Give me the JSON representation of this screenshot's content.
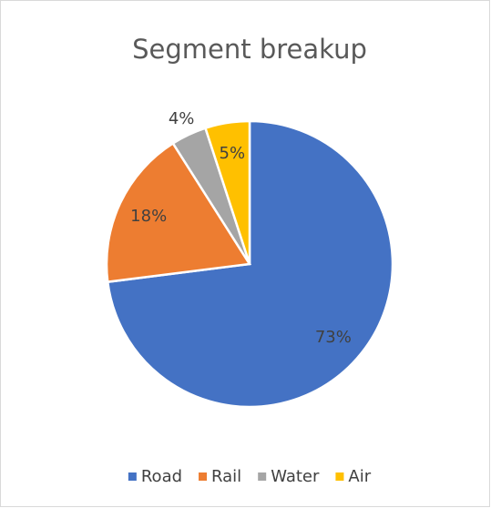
{
  "chart_data": {
    "type": "pie",
    "title": "Segment breakup",
    "categories": [
      "Road",
      "Rail",
      "Water",
      "Air"
    ],
    "values": [
      73,
      18,
      4,
      5
    ],
    "value_labels": [
      "73%",
      "18%",
      "4%",
      "5%"
    ],
    "colors": [
      "#4472c4",
      "#ed7d31",
      "#a5a5a5",
      "#ffc000"
    ],
    "legend": "bottom"
  }
}
